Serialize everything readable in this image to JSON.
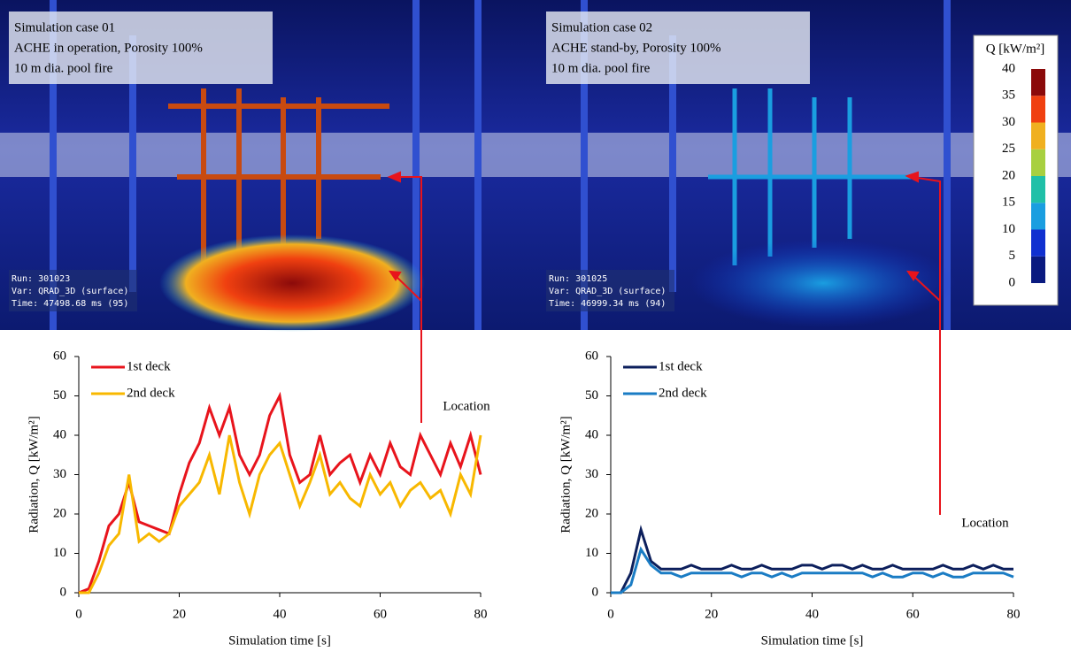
{
  "images": [
    {
      "caption": [
        "Simulation case 01",
        "ACHE in operation, Porosity 100%",
        "10 m dia. pool fire"
      ],
      "run": [
        "Run: 301023",
        "Var: QRAD_3D (surface)",
        "Time: 47498.68 ms (95)"
      ]
    },
    {
      "caption": [
        "Simulation case 02",
        "ACHE stand-by, Porosity 100%",
        "10 m dia. pool fire"
      ],
      "run": [
        "Run: 301025",
        "Var: QRAD_3D (surface)",
        "Time: 46999.34 ms (94)"
      ]
    }
  ],
  "colorbar": {
    "label": "Q [kW/m²]",
    "ticks": [
      0,
      5,
      10,
      15,
      20,
      25,
      30,
      35,
      40
    ],
    "colors": [
      "#0a1a80",
      "#1030d0",
      "#1a9ee0",
      "#20c0a8",
      "#a8d040",
      "#f0b020",
      "#f04010",
      "#8b0a0a"
    ]
  },
  "chart_data": [
    {
      "type": "line",
      "ylabel": "Radiation, Q [kW/m²]",
      "xlabel": "Simulation time [s]",
      "annotation": "Location",
      "x": [
        0,
        2,
        4,
        6,
        8,
        10,
        12,
        14,
        16,
        18,
        20,
        22,
        24,
        26,
        28,
        30,
        32,
        34,
        36,
        38,
        40,
        42,
        44,
        46,
        48,
        50,
        52,
        54,
        56,
        58,
        60,
        62,
        64,
        66,
        68,
        70,
        72,
        74,
        76,
        78,
        80
      ],
      "series": [
        {
          "name": "1st deck",
          "color": "#e8141c",
          "values": [
            0,
            1,
            8,
            17,
            20,
            28,
            18,
            17,
            16,
            15,
            25,
            33,
            38,
            47,
            40,
            47,
            35,
            30,
            35,
            45,
            50,
            35,
            28,
            30,
            40,
            30,
            33,
            35,
            28,
            35,
            30,
            38,
            32,
            30,
            40,
            35,
            30,
            38,
            32,
            40,
            30
          ]
        },
        {
          "name": "2nd deck",
          "color": "#f8b800",
          "values": [
            0,
            0,
            5,
            12,
            15,
            30,
            13,
            15,
            13,
            15,
            22,
            25,
            28,
            35,
            25,
            40,
            28,
            20,
            30,
            35,
            38,
            30,
            22,
            28,
            35,
            25,
            28,
            24,
            22,
            30,
            25,
            28,
            22,
            26,
            28,
            24,
            26,
            20,
            30,
            25,
            40
          ]
        }
      ],
      "xlim": [
        0,
        80
      ],
      "xticks": [
        0,
        20,
        40,
        60,
        80
      ],
      "ylim": [
        0,
        60
      ],
      "yticks": [
        0,
        10,
        20,
        30,
        40,
        50,
        60
      ]
    },
    {
      "type": "line",
      "ylabel": "Radiation, Q [kW/m²]",
      "xlabel": "Simulation time [s]",
      "annotation": "Location",
      "x": [
        0,
        2,
        4,
        6,
        8,
        10,
        12,
        14,
        16,
        18,
        20,
        22,
        24,
        26,
        28,
        30,
        32,
        34,
        36,
        38,
        40,
        42,
        44,
        46,
        48,
        50,
        52,
        54,
        56,
        58,
        60,
        62,
        64,
        66,
        68,
        70,
        72,
        74,
        76,
        78,
        80
      ],
      "series": [
        {
          "name": "1st deck",
          "color": "#0c1f5c",
          "values": [
            0,
            0,
            5,
            16,
            8,
            6,
            6,
            6,
            7,
            6,
            6,
            6,
            7,
            6,
            6,
            7,
            6,
            6,
            6,
            7,
            7,
            6,
            7,
            7,
            6,
            7,
            6,
            6,
            7,
            6,
            6,
            6,
            6,
            7,
            6,
            6,
            7,
            6,
            7,
            6,
            6
          ]
        },
        {
          "name": "2nd deck",
          "color": "#1a7cc4",
          "values": [
            0,
            0,
            2,
            11,
            7,
            5,
            5,
            4,
            5,
            5,
            5,
            5,
            5,
            4,
            5,
            5,
            4,
            5,
            4,
            5,
            5,
            5,
            5,
            5,
            5,
            5,
            4,
            5,
            4,
            4,
            5,
            5,
            4,
            5,
            4,
            4,
            5,
            5,
            5,
            5,
            4
          ]
        }
      ],
      "xlim": [
        0,
        80
      ],
      "xticks": [
        0,
        20,
        40,
        60,
        80
      ],
      "ylim": [
        0,
        60
      ],
      "yticks": [
        0,
        10,
        20,
        30,
        40,
        50,
        60
      ]
    }
  ]
}
